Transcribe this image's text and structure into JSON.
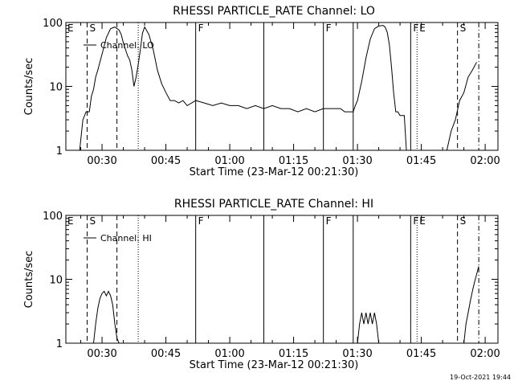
{
  "timestamp": "19-Oct-2021 19:44",
  "chart_data": [
    {
      "type": "line",
      "title": "RHESSI PARTICLE_RATE Channel: LO",
      "xlabel": "Start Time (23-Mar-12 00:21:30)",
      "ylabel": "Counts/sec",
      "y_scale": "log",
      "ylim": [
        1,
        100
      ],
      "y_ticks": [
        "1",
        "10",
        "100"
      ],
      "x_ticks": [
        "00:30",
        "00:45",
        "01:00",
        "01:15",
        "01:30",
        "01:45",
        "02:00"
      ],
      "xlim": [
        "00:21:30",
        "02:03:00"
      ],
      "grid": false,
      "legend_position": "top-left",
      "series": [
        {
          "name": "Channel: LO",
          "x": [
            "00:24:45",
            "00:25:30",
            "00:26:15",
            "00:27:00",
            "00:27:30",
            "00:28:00",
            "00:28:30",
            "00:29:00",
            "00:29:30",
            "00:30:00",
            "00:31:00",
            "00:32:00",
            "00:33:00",
            "00:34:00",
            "00:34:30",
            "00:35:00",
            "00:35:30",
            "00:36:00",
            "00:36:30",
            "00:37:00",
            "00:37:30",
            "00:38:00",
            "00:38:30",
            "00:39:00",
            "00:39:30",
            "00:40:00",
            "00:41:00",
            "00:42:00",
            "00:43:00",
            "00:44:00",
            "00:45:00",
            "00:46:00",
            "00:47:00",
            "00:48:00",
            "00:49:00",
            "00:50:00",
            "00:52:00",
            "00:54:00",
            "00:56:00",
            "00:58:00",
            "01:00:00",
            "01:02:00",
            "01:04:00",
            "01:06:00",
            "01:08:00",
            "01:10:00",
            "01:12:00",
            "01:14:00",
            "01:16:00",
            "01:18:00",
            "01:20:00",
            "01:22:00",
            "01:24:00",
            "01:26:00",
            "01:27:00",
            "01:28:00",
            "01:28:30",
            "01:29:00",
            "01:29:30",
            "01:30:00",
            "01:31:00",
            "01:32:00",
            "01:33:00",
            "01:34:00",
            "01:35:00",
            "01:36:00",
            "01:36:30",
            "01:37:00",
            "01:37:30",
            "01:38:00",
            "01:38:30",
            "01:39:00",
            "01:39:30",
            "01:40:00",
            "01:41:00",
            "01:41:30",
            "01:42:00",
            "01:43:00",
            "01:44:00",
            "01:45:00",
            "01:46:00",
            "01:47:00",
            "01:48:00",
            "01:49:00",
            "01:50:00",
            "01:51:00",
            "01:52:00",
            "01:53:00",
            "01:54:00",
            "01:55:00",
            "01:56:00",
            "01:57:00",
            "01:58:00"
          ],
          "values": [
            1,
            3,
            4,
            4,
            7,
            9,
            14,
            18,
            24,
            32,
            58,
            80,
            85,
            76,
            65,
            48,
            38,
            30,
            26,
            18,
            10,
            14,
            22,
            38,
            68,
            85,
            65,
            38,
            18,
            11,
            8,
            6,
            6,
            5.5,
            6,
            5,
            6,
            5.5,
            5,
            5.5,
            5,
            5,
            4.5,
            5,
            4.5,
            5,
            4.5,
            4.5,
            4,
            4.5,
            4,
            4.5,
            4.5,
            4.5,
            4,
            4,
            4,
            4,
            5,
            6,
            12,
            28,
            55,
            80,
            88,
            90,
            85,
            70,
            45,
            20,
            8,
            4,
            4,
            3.5,
            3.5,
            1,
            1,
            1,
            1,
            1,
            1,
            1,
            1,
            1,
            1,
            1,
            2,
            3,
            6,
            8,
            14,
            18,
            24
          ]
        }
      ],
      "markers": [
        {
          "time": "00:26:30",
          "style": "dashed",
          "label": "S"
        },
        {
          "time": "00:33:30",
          "style": "dashed",
          "label": ""
        },
        {
          "time": "00:38:30",
          "style": "dotted",
          "label": ""
        },
        {
          "time": "00:52:00",
          "style": "solid",
          "label": "F"
        },
        {
          "time": "01:08:00",
          "style": "solid",
          "label": ""
        },
        {
          "time": "01:22:00",
          "style": "solid",
          "label": "F"
        },
        {
          "time": "01:29:00",
          "style": "solid",
          "label": ""
        },
        {
          "time": "01:42:30",
          "style": "solid",
          "label": "F"
        },
        {
          "time": "01:44:00",
          "style": "dotted",
          "label": "E"
        },
        {
          "time": "01:53:30",
          "style": "dashed",
          "label": "S"
        },
        {
          "time": "01:58:30",
          "style": "dashdot",
          "label": ""
        }
      ],
      "start_label": "E"
    },
    {
      "type": "line",
      "title": "RHESSI PARTICLE_RATE Channel: HI",
      "xlabel": "Start Time (23-Mar-12 00:21:30)",
      "ylabel": "Counts/sec",
      "y_scale": "log",
      "ylim": [
        1,
        100
      ],
      "y_ticks": [
        "1",
        "10",
        "100"
      ],
      "x_ticks": [
        "00:30",
        "00:45",
        "01:00",
        "01:15",
        "01:30",
        "01:45",
        "02:00"
      ],
      "xlim": [
        "00:21:30",
        "02:03:00"
      ],
      "grid": false,
      "legend_position": "top-left",
      "series": [
        {
          "name": "Channel: HI",
          "x": [
            "00:28:00",
            "00:28:30",
            "00:29:00",
            "00:29:30",
            "00:30:00",
            "00:30:30",
            "00:31:00",
            "00:31:30",
            "00:32:00",
            "00:32:30",
            "00:33:00",
            "00:33:30",
            "00:34:00"
          ],
          "values": [
            1,
            2,
            3.5,
            5,
            6,
            6.5,
            5.5,
            6.5,
            5.5,
            4,
            2,
            1.2,
            1
          ],
          "segments": [
            {
              "x": [
                "01:30:00",
                "01:30:30",
                "01:31:00",
                "01:31:30",
                "01:32:00",
                "01:32:30",
                "01:33:00",
                "01:33:30",
                "01:34:00",
                "01:34:30",
                "01:35:00"
              ],
              "values": [
                1,
                2,
                3,
                2,
                3,
                2,
                3,
                2,
                3,
                2,
                1
              ]
            },
            {
              "x": [
                "01:55:00",
                "01:55:30",
                "01:56:00",
                "01:56:30",
                "01:57:00",
                "01:57:30",
                "01:58:00",
                "01:58:30"
              ],
              "values": [
                1,
                2,
                3,
                4.5,
                6.5,
                9,
                12,
                16
              ]
            }
          ]
        }
      ],
      "markers": [
        {
          "time": "00:26:30",
          "style": "dashed",
          "label": "S"
        },
        {
          "time": "00:33:30",
          "style": "dashed",
          "label": ""
        },
        {
          "time": "00:38:30",
          "style": "dotted",
          "label": ""
        },
        {
          "time": "00:52:00",
          "style": "solid",
          "label": "F"
        },
        {
          "time": "01:08:00",
          "style": "solid",
          "label": ""
        },
        {
          "time": "01:22:00",
          "style": "solid",
          "label": "F"
        },
        {
          "time": "01:29:00",
          "style": "solid",
          "label": ""
        },
        {
          "time": "01:42:30",
          "style": "solid",
          "label": "F"
        },
        {
          "time": "01:44:00",
          "style": "dotted",
          "label": "E"
        },
        {
          "time": "01:53:30",
          "style": "dashed",
          "label": "S"
        },
        {
          "time": "01:58:30",
          "style": "dashdot",
          "label": ""
        }
      ],
      "start_label": "E"
    }
  ]
}
